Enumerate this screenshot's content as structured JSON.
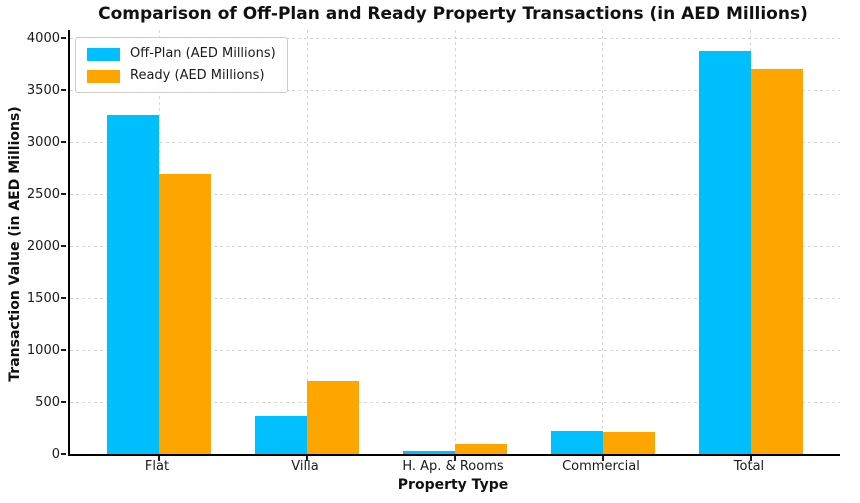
{
  "chart_data": {
    "type": "bar",
    "title": "Comparison of Off-Plan and Ready Property Transactions (in AED Millions)",
    "xlabel": "Property Type",
    "ylabel": "Transaction Value (in AED Millions)",
    "categories": [
      "Flat",
      "Villa",
      "H. Ap. & Rooms",
      "Commercial",
      "Total"
    ],
    "series": [
      {
        "name": "Off-Plan (AED Millions)",
        "color": "#00BFFF",
        "values": [
          3265,
          370,
          25,
          220,
          3880
        ]
      },
      {
        "name": "Ready (AED Millions)",
        "color": "#FFA500",
        "values": [
          2690,
          700,
          100,
          210,
          3700
        ]
      }
    ],
    "ylim": [
      0,
      4080
    ],
    "yticks": [
      0,
      500,
      1000,
      1500,
      2000,
      2500,
      3000,
      3500,
      4000
    ],
    "grid": "both-dashed",
    "legend_position": "upper-left",
    "background_color": "#ffffff",
    "grid_color": "#d7d7d7",
    "spine_color": "#000000",
    "text_color": "#1a1a1a"
  }
}
